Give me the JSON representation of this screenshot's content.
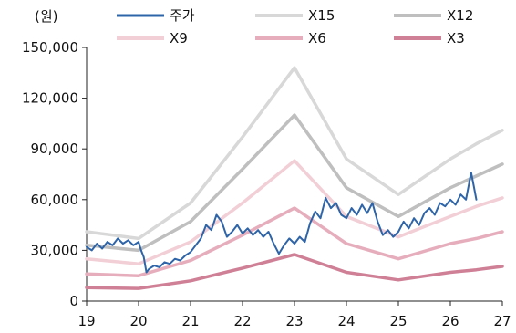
{
  "chart_data": {
    "type": "line",
    "unit_label": "(원)",
    "x_ticks": [
      "19",
      "20",
      "21",
      "22",
      "23",
      "24",
      "25",
      "26",
      "27"
    ],
    "xlim": [
      2019,
      2027
    ],
    "y_ticks": [
      "0",
      "30,000",
      "60,000",
      "90,000",
      "120,000",
      "150,000"
    ],
    "ylim": [
      0,
      150000
    ],
    "grid": false,
    "legend": "top",
    "series": [
      {
        "name": "X15",
        "color": "#d8d8d8",
        "width": 3.5,
        "points": [
          [
            2019.0,
            41000
          ],
          [
            2020.0,
            37000
          ],
          [
            2021.0,
            58000
          ],
          [
            2022.0,
            97000
          ],
          [
            2023.0,
            138000
          ],
          [
            2024.0,
            84000
          ],
          [
            2025.0,
            63000
          ],
          [
            2026.0,
            84000
          ],
          [
            2026.5,
            93000
          ],
          [
            2027.0,
            101000
          ]
        ]
      },
      {
        "name": "X12",
        "color": "#bfbfbf",
        "width": 3.5,
        "points": [
          [
            2019.0,
            33000
          ],
          [
            2020.0,
            30000
          ],
          [
            2021.0,
            47000
          ],
          [
            2022.0,
            78000
          ],
          [
            2023.0,
            110000
          ],
          [
            2024.0,
            67000
          ],
          [
            2025.0,
            50000
          ],
          [
            2026.0,
            67000
          ],
          [
            2026.5,
            74000
          ],
          [
            2027.0,
            81000
          ]
        ]
      },
      {
        "name": "X9",
        "color": "#f2cfd6",
        "width": 3.5,
        "points": [
          [
            2019.0,
            25000
          ],
          [
            2020.0,
            22000
          ],
          [
            2021.0,
            35000
          ],
          [
            2022.0,
            58000
          ],
          [
            2023.0,
            83000
          ],
          [
            2024.0,
            50000
          ],
          [
            2025.0,
            38000
          ],
          [
            2026.0,
            50000
          ],
          [
            2026.5,
            56000
          ],
          [
            2027.0,
            61000
          ]
        ]
      },
      {
        "name": "X6",
        "color": "#e6aebd",
        "width": 3.5,
        "points": [
          [
            2019.0,
            16000
          ],
          [
            2020.0,
            15000
          ],
          [
            2021.0,
            24000
          ],
          [
            2022.0,
            39000
          ],
          [
            2023.0,
            55000
          ],
          [
            2024.0,
            34000
          ],
          [
            2025.0,
            25000
          ],
          [
            2026.0,
            34000
          ],
          [
            2026.5,
            37000
          ],
          [
            2027.0,
            41000
          ]
        ]
      },
      {
        "name": "X3",
        "color": "#cf7f96",
        "width": 3.5,
        "points": [
          [
            2019.0,
            8000
          ],
          [
            2020.0,
            7500
          ],
          [
            2021.0,
            12000
          ],
          [
            2022.0,
            19500
          ],
          [
            2023.0,
            27500
          ],
          [
            2024.0,
            17000
          ],
          [
            2025.0,
            12500
          ],
          [
            2026.0,
            17000
          ],
          [
            2026.5,
            18500
          ],
          [
            2027.0,
            20500
          ]
        ]
      },
      {
        "name": "주가",
        "color": "#2e64a8",
        "width": 2,
        "points": [
          [
            2019.0,
            32000
          ],
          [
            2019.1,
            30000
          ],
          [
            2019.2,
            34000
          ],
          [
            2019.3,
            31000
          ],
          [
            2019.4,
            35000
          ],
          [
            2019.5,
            33000
          ],
          [
            2019.6,
            37000
          ],
          [
            2019.7,
            34000
          ],
          [
            2019.8,
            36000
          ],
          [
            2019.9,
            33000
          ],
          [
            2020.0,
            35000
          ],
          [
            2020.05,
            30000
          ],
          [
            2020.1,
            26000
          ],
          [
            2020.15,
            17000
          ],
          [
            2020.2,
            19000
          ],
          [
            2020.3,
            21000
          ],
          [
            2020.4,
            20000
          ],
          [
            2020.5,
            23000
          ],
          [
            2020.6,
            22000
          ],
          [
            2020.7,
            25000
          ],
          [
            2020.8,
            24000
          ],
          [
            2020.9,
            27000
          ],
          [
            2021.0,
            29000
          ],
          [
            2021.1,
            33000
          ],
          [
            2021.2,
            37000
          ],
          [
            2021.3,
            45000
          ],
          [
            2021.4,
            42000
          ],
          [
            2021.5,
            51000
          ],
          [
            2021.6,
            47000
          ],
          [
            2021.7,
            38000
          ],
          [
            2021.8,
            41000
          ],
          [
            2021.9,
            45000
          ],
          [
            2022.0,
            40000
          ],
          [
            2022.1,
            43000
          ],
          [
            2022.2,
            39000
          ],
          [
            2022.3,
            42000
          ],
          [
            2022.4,
            38000
          ],
          [
            2022.5,
            41000
          ],
          [
            2022.6,
            34000
          ],
          [
            2022.7,
            28000
          ],
          [
            2022.8,
            33000
          ],
          [
            2022.9,
            37000
          ],
          [
            2023.0,
            34000
          ],
          [
            2023.1,
            38000
          ],
          [
            2023.2,
            35000
          ],
          [
            2023.3,
            46000
          ],
          [
            2023.4,
            53000
          ],
          [
            2023.5,
            49000
          ],
          [
            2023.6,
            61000
          ],
          [
            2023.7,
            55000
          ],
          [
            2023.8,
            58000
          ],
          [
            2023.9,
            51000
          ],
          [
            2024.0,
            49000
          ],
          [
            2024.1,
            55000
          ],
          [
            2024.2,
            51000
          ],
          [
            2024.3,
            57000
          ],
          [
            2024.4,
            52000
          ],
          [
            2024.5,
            58000
          ],
          [
            2024.6,
            47000
          ],
          [
            2024.7,
            39000
          ],
          [
            2024.8,
            42000
          ],
          [
            2024.9,
            38000
          ],
          [
            2025.0,
            41000
          ],
          [
            2025.1,
            47000
          ],
          [
            2025.2,
            43000
          ],
          [
            2025.3,
            49000
          ],
          [
            2025.4,
            45000
          ],
          [
            2025.5,
            52000
          ],
          [
            2025.6,
            55000
          ],
          [
            2025.7,
            51000
          ],
          [
            2025.8,
            58000
          ],
          [
            2025.9,
            56000
          ],
          [
            2026.0,
            60000
          ],
          [
            2026.1,
            57000
          ],
          [
            2026.2,
            63000
          ],
          [
            2026.3,
            60000
          ],
          [
            2026.4,
            76000
          ],
          [
            2026.45,
            68000
          ],
          [
            2026.5,
            60000
          ]
        ]
      }
    ],
    "legend_order": [
      "주가",
      "X15",
      "X12",
      "X9",
      "X6",
      "X3"
    ]
  }
}
